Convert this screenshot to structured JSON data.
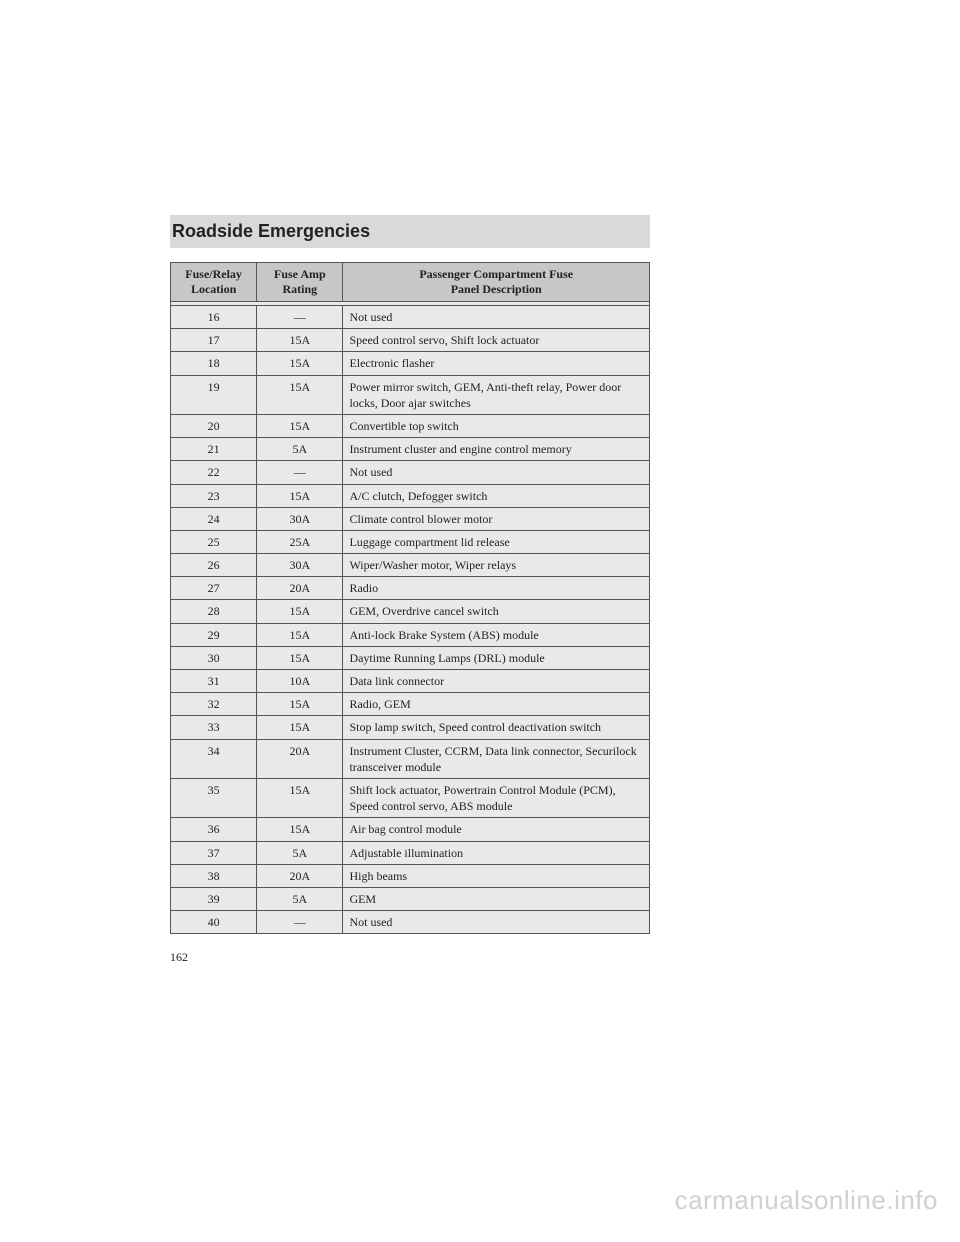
{
  "section_title": "Roadside Emergencies",
  "page_number": "162",
  "watermark": "carmanualsonline.info",
  "table": {
    "headers": {
      "col1_line1": "Fuse/Relay",
      "col1_line2": "Location",
      "col2_line1": "Fuse Amp",
      "col2_line2": "Rating",
      "col3_line1": "Passenger Compartment Fuse",
      "col3_line2": "Panel Description"
    },
    "rows": [
      {
        "loc": "16",
        "amp": "—",
        "desc": "Not used"
      },
      {
        "loc": "17",
        "amp": "15A",
        "desc": "Speed control servo, Shift lock actuator"
      },
      {
        "loc": "18",
        "amp": "15A",
        "desc": "Electronic flasher"
      },
      {
        "loc": "19",
        "amp": "15A",
        "desc": "Power mirror switch, GEM, Anti-theft relay, Power door locks, Door ajar switches"
      },
      {
        "loc": "20",
        "amp": "15A",
        "desc": "Convertible top switch"
      },
      {
        "loc": "21",
        "amp": "5A",
        "desc": "Instrument cluster and engine control memory"
      },
      {
        "loc": "22",
        "amp": "—",
        "desc": "Not used"
      },
      {
        "loc": "23",
        "amp": "15A",
        "desc": "A/C clutch, Defogger switch"
      },
      {
        "loc": "24",
        "amp": "30A",
        "desc": "Climate control blower motor"
      },
      {
        "loc": "25",
        "amp": "25A",
        "desc": "Luggage compartment lid release"
      },
      {
        "loc": "26",
        "amp": "30A",
        "desc": "Wiper/Washer motor, Wiper relays"
      },
      {
        "loc": "27",
        "amp": "20A",
        "desc": "Radio"
      },
      {
        "loc": "28",
        "amp": "15A",
        "desc": "GEM, Overdrive cancel switch"
      },
      {
        "loc": "29",
        "amp": "15A",
        "desc": "Anti-lock Brake System (ABS) module"
      },
      {
        "loc": "30",
        "amp": "15A",
        "desc": "Daytime Running Lamps (DRL) module"
      },
      {
        "loc": "31",
        "amp": "10A",
        "desc": "Data link connector"
      },
      {
        "loc": "32",
        "amp": "15A",
        "desc": "Radio, GEM"
      },
      {
        "loc": "33",
        "amp": "15A",
        "desc": "Stop lamp switch, Speed control deactivation switch"
      },
      {
        "loc": "34",
        "amp": "20A",
        "desc": "Instrument Cluster, CCRM, Data link connector, Securilock transceiver module"
      },
      {
        "loc": "35",
        "amp": "15A",
        "desc": "Shift lock actuator, Powertrain Control Module (PCM), Speed control servo, ABS module"
      },
      {
        "loc": "36",
        "amp": "15A",
        "desc": "Air bag control module"
      },
      {
        "loc": "37",
        "amp": "5A",
        "desc": "Adjustable illumination"
      },
      {
        "loc": "38",
        "amp": "20A",
        "desc": "High beams"
      },
      {
        "loc": "39",
        "amp": "5A",
        "desc": "GEM"
      },
      {
        "loc": "40",
        "amp": "—",
        "desc": "Not used"
      }
    ]
  }
}
